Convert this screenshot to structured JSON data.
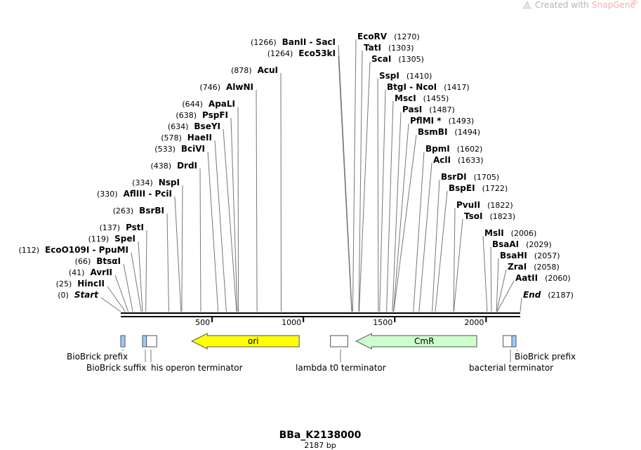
{
  "header": {
    "created_with": "Created with",
    "brand": "SnapGene",
    "registered": "®"
  },
  "plasmid": {
    "name": "BBa_K2138000",
    "length_label": "2187 bp",
    "length": 2187
  },
  "colors": {
    "backbone": "#000000",
    "ori": "#ffff00",
    "cmr": "#ccffcc",
    "biobrick": "#99ccff",
    "terminator": "#ffffff"
  },
  "axis_ticks": [
    500,
    1000,
    1500,
    2000
  ],
  "sites": {
    "left": [
      {
        "bp": 1266,
        "pos": "(1266)",
        "name": "BanII  -  SacI"
      },
      {
        "bp": 1264,
        "pos": "(1264)",
        "name": "Eco53kI"
      },
      {
        "bp": 878,
        "pos": "(878)",
        "name": "AcuI"
      },
      {
        "bp": 746,
        "pos": "(746)",
        "name": "AlwNI"
      },
      {
        "bp": 644,
        "pos": "(644)",
        "name": "ApaLI"
      },
      {
        "bp": 638,
        "pos": "(638)",
        "name": "PspFI"
      },
      {
        "bp": 634,
        "pos": "(634)",
        "name": "BseYI"
      },
      {
        "bp": 578,
        "pos": "(578)",
        "name": "HaeII"
      },
      {
        "bp": 533,
        "pos": "(533)",
        "name": "BciVI"
      },
      {
        "bp": 438,
        "pos": "(438)",
        "name": "DrdI"
      },
      {
        "bp": 334,
        "pos": "(334)",
        "name": "NspI"
      },
      {
        "bp": 330,
        "pos": "(330)",
        "name": "AflIII  -  PciI"
      },
      {
        "bp": 263,
        "pos": "(263)",
        "name": "BsrBI"
      },
      {
        "bp": 137,
        "pos": "(137)",
        "name": "PstI"
      },
      {
        "bp": 119,
        "pos": "(119)",
        "name": "SpeI"
      },
      {
        "bp": 112,
        "pos": "(112)",
        "name": "EcoO109I  -  PpuMI"
      },
      {
        "bp": 66,
        "pos": "(66)",
        "name": "BtsαI"
      },
      {
        "bp": 41,
        "pos": "(41)",
        "name": "AvrII"
      },
      {
        "bp": 25,
        "pos": "(25)",
        "name": "HincII"
      },
      {
        "bp": 0,
        "pos": "(0)",
        "name": "Start",
        "italic": true
      }
    ],
    "right": [
      {
        "bp": 1270,
        "pos": "(1270)",
        "name": "EcoRV"
      },
      {
        "bp": 1303,
        "pos": "(1303)",
        "name": "TatI"
      },
      {
        "bp": 1305,
        "pos": "(1305)",
        "name": "ScaI"
      },
      {
        "bp": 1410,
        "pos": "(1410)",
        "name": "SspI"
      },
      {
        "bp": 1417,
        "pos": "(1417)",
        "name": "BtgI  -  NcoI"
      },
      {
        "bp": 1455,
        "pos": "(1455)",
        "name": "MscI"
      },
      {
        "bp": 1487,
        "pos": "(1487)",
        "name": "PasI"
      },
      {
        "bp": 1493,
        "pos": "(1493)",
        "name": "PflMI *"
      },
      {
        "bp": 1494,
        "pos": "(1494)",
        "name": "BsmBI"
      },
      {
        "bp": 1602,
        "pos": "(1602)",
        "name": "BpmI"
      },
      {
        "bp": 1633,
        "pos": "(1633)",
        "name": "AclI"
      },
      {
        "bp": 1705,
        "pos": "(1705)",
        "name": "BsrDI"
      },
      {
        "bp": 1722,
        "pos": "(1722)",
        "name": "BspEI"
      },
      {
        "bp": 1822,
        "pos": "(1822)",
        "name": "PvuII"
      },
      {
        "bp": 1823,
        "pos": "(1823)",
        "name": "TsoI"
      },
      {
        "bp": 2006,
        "pos": "(2006)",
        "name": "MslI"
      },
      {
        "bp": 2029,
        "pos": "(2029)",
        "name": "BsaAI"
      },
      {
        "bp": 2057,
        "pos": "(2057)",
        "name": "BsaHI"
      },
      {
        "bp": 2058,
        "pos": "(2058)",
        "name": "ZraI"
      },
      {
        "bp": 2060,
        "pos": "(2060)",
        "name": "AatII"
      },
      {
        "bp": 2187,
        "pos": "(2187)",
        "name": "End",
        "italic": true
      }
    ]
  },
  "features": [
    {
      "name": "BioBrick prefix",
      "kind": "biobrick",
      "start": 0,
      "end": 22
    },
    {
      "name": "BioBrick suffix",
      "kind": "biobrick",
      "start": 119,
      "end": 140
    },
    {
      "name": "his operon terminator",
      "kind": "terminator",
      "start": 141,
      "end": 197
    },
    {
      "name": "ori",
      "kind": "ori",
      "arrow": "left",
      "start": 389,
      "end": 977
    },
    {
      "name": "lambda t0 terminator",
      "kind": "terminator",
      "start": 1148,
      "end": 1243
    },
    {
      "name": "CmR",
      "kind": "cmr",
      "arrow": "left",
      "start": 1289,
      "end": 1949
    },
    {
      "name": "bacterial terminator",
      "kind": "terminator",
      "start": 2093,
      "end": 2141
    },
    {
      "name": "BioBrick prefix",
      "kind": "biobrick",
      "start": 2141,
      "end": 2163
    }
  ],
  "feature_labels": [
    {
      "text": "BioBrick prefix",
      "feature": 0
    },
    {
      "text": "BioBrick suffix",
      "feature": 1
    },
    {
      "text": "his operon terminator",
      "feature": 2
    },
    {
      "text": "lambda t0 terminator",
      "feature": 4
    },
    {
      "text": "bacterial terminator",
      "feature": 6
    },
    {
      "text": "BioBrick prefix",
      "feature": 7
    }
  ]
}
